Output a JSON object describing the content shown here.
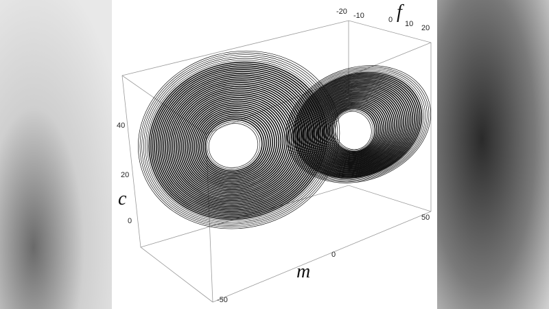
{
  "axes": {
    "f": {
      "label": "f",
      "ticks": [
        -20,
        -10,
        0,
        10,
        20
      ]
    },
    "c": {
      "label": "c",
      "ticks": [
        40,
        20,
        0
      ]
    },
    "m": {
      "label": "m",
      "ticks": [
        -50,
        0,
        50
      ]
    }
  }
}
